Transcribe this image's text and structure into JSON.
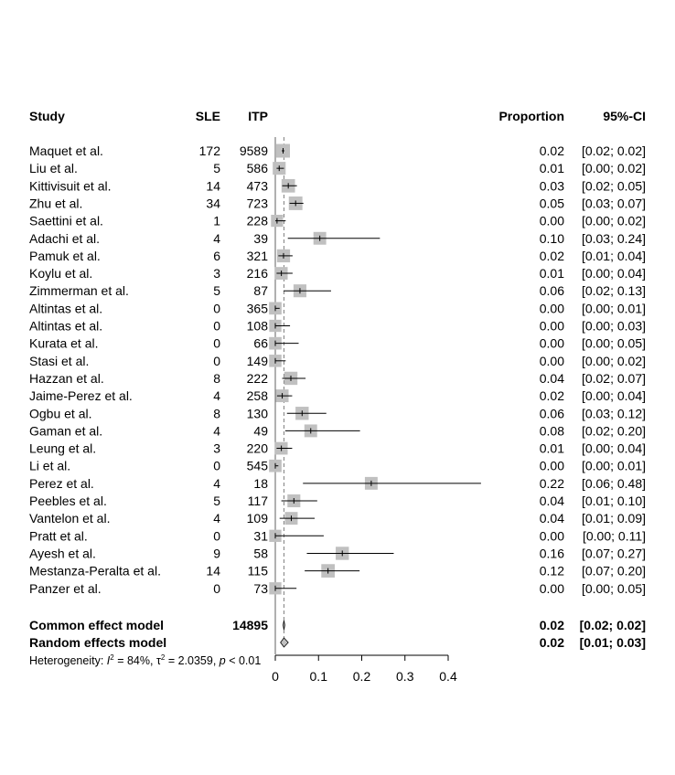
{
  "chart_data": {
    "type": "forest",
    "headers": {
      "study": "Study",
      "sle": "SLE",
      "itp": "ITP",
      "proportion": "Proportion",
      "ci": "95%-CI"
    },
    "studies": [
      {
        "name": "Maquet et al.",
        "sle": "172",
        "itp": "9589",
        "est": 0.018,
        "lo": 0.015,
        "hi": 0.021,
        "prop_text": "0.02",
        "ci_text": "[0.02; 0.02]",
        "weight": 1.0
      },
      {
        "name": "Liu et al.",
        "sle": "5",
        "itp": "586",
        "est": 0.009,
        "lo": 0.003,
        "hi": 0.02,
        "prop_text": "0.01",
        "ci_text": "[0.00; 0.02]",
        "weight": 0.85
      },
      {
        "name": "Kittivisuit et al.",
        "sle": "14",
        "itp": "473",
        "est": 0.03,
        "lo": 0.016,
        "hi": 0.05,
        "prop_text": "0.03",
        "ci_text": "[0.02; 0.05]",
        "weight": 0.95
      },
      {
        "name": "Zhu et al.",
        "sle": "34",
        "itp": "723",
        "est": 0.047,
        "lo": 0.033,
        "hi": 0.065,
        "prop_text": "0.05",
        "ci_text": "[0.03; 0.07]",
        "weight": 0.98
      },
      {
        "name": "Saettini et al.",
        "sle": "1",
        "itp": "228",
        "est": 0.004,
        "lo": 0.0,
        "hi": 0.024,
        "prop_text": "0.00",
        "ci_text": "[0.00; 0.02]",
        "weight": 0.7
      },
      {
        "name": "Adachi et al.",
        "sle": "4",
        "itp": "39",
        "est": 0.103,
        "lo": 0.029,
        "hi": 0.242,
        "prop_text": "0.10",
        "ci_text": "[0.03; 0.24]",
        "weight": 0.82
      },
      {
        "name": "Pamuk et al.",
        "sle": "6",
        "itp": "321",
        "est": 0.019,
        "lo": 0.007,
        "hi": 0.04,
        "prop_text": "0.02",
        "ci_text": "[0.01; 0.04]",
        "weight": 0.88
      },
      {
        "name": "Koylu et al.",
        "sle": "3",
        "itp": "216",
        "est": 0.014,
        "lo": 0.003,
        "hi": 0.04,
        "prop_text": "0.01",
        "ci_text": "[0.00; 0.04]",
        "weight": 0.8
      },
      {
        "name": "Zimmerman et al.",
        "sle": "5",
        "itp": "87",
        "est": 0.057,
        "lo": 0.019,
        "hi": 0.129,
        "prop_text": "0.06",
        "ci_text": "[0.02; 0.13]",
        "weight": 0.85
      },
      {
        "name": "Altintas et al.",
        "sle": "0",
        "itp": "365",
        "est": 0.0,
        "lo": 0.0,
        "hi": 0.01,
        "prop_text": "0.00",
        "ci_text": "[0.00; 0.01]",
        "weight": 0.78
      },
      {
        "name": "Altintas et al.",
        "sle": "0",
        "itp": "108",
        "est": 0.0,
        "lo": 0.0,
        "hi": 0.034,
        "prop_text": "0.00",
        "ci_text": "[0.00; 0.03]",
        "weight": 0.72
      },
      {
        "name": "Kurata et al.",
        "sle": "0",
        "itp": "66",
        "est": 0.0,
        "lo": 0.0,
        "hi": 0.054,
        "prop_text": "0.00",
        "ci_text": "[0.00; 0.05]",
        "weight": 0.78
      },
      {
        "name": "Stasi et al.",
        "sle": "0",
        "itp": "149",
        "est": 0.0,
        "lo": 0.0,
        "hi": 0.024,
        "prop_text": "0.00",
        "ci_text": "[0.00; 0.02]",
        "weight": 0.75
      },
      {
        "name": "Hazzan et al.",
        "sle": "8",
        "itp": "222",
        "est": 0.036,
        "lo": 0.016,
        "hi": 0.07,
        "prop_text": "0.04",
        "ci_text": "[0.02; 0.07]",
        "weight": 0.9
      },
      {
        "name": "Jaime-Perez et al.",
        "sle": "4",
        "itp": "258",
        "est": 0.016,
        "lo": 0.004,
        "hi": 0.039,
        "prop_text": "0.02",
        "ci_text": "[0.00; 0.04]",
        "weight": 0.82
      },
      {
        "name": "Ogbu et al.",
        "sle": "8",
        "itp": "130",
        "est": 0.062,
        "lo": 0.027,
        "hi": 0.118,
        "prop_text": "0.06",
        "ci_text": "[0.03; 0.12]",
        "weight": 0.9
      },
      {
        "name": "Gaman et al.",
        "sle": "4",
        "itp": "49",
        "est": 0.082,
        "lo": 0.023,
        "hi": 0.196,
        "prop_text": "0.08",
        "ci_text": "[0.02; 0.20]",
        "weight": 0.82
      },
      {
        "name": "Leung et al.",
        "sle": "3",
        "itp": "220",
        "est": 0.014,
        "lo": 0.003,
        "hi": 0.039,
        "prop_text": "0.01",
        "ci_text": "[0.00; 0.04]",
        "weight": 0.8
      },
      {
        "name": "Li et al.",
        "sle": "0",
        "itp": "545",
        "est": 0.0,
        "lo": 0.0,
        "hi": 0.007,
        "prop_text": "0.00",
        "ci_text": "[0.00; 0.01]",
        "weight": 0.78
      },
      {
        "name": "Perez et al.",
        "sle": "4",
        "itp": "18",
        "est": 0.222,
        "lo": 0.064,
        "hi": 0.476,
        "prop_text": "0.22",
        "ci_text": "[0.06; 0.48]",
        "weight": 0.82
      },
      {
        "name": "Peebles et al.",
        "sle": "5",
        "itp": "117",
        "est": 0.043,
        "lo": 0.014,
        "hi": 0.097,
        "prop_text": "0.04",
        "ci_text": "[0.01; 0.10]",
        "weight": 0.85
      },
      {
        "name": "Vantelon et al.",
        "sle": "4",
        "itp": "109",
        "est": 0.037,
        "lo": 0.01,
        "hi": 0.091,
        "prop_text": "0.04",
        "ci_text": "[0.01; 0.09]",
        "weight": 0.82
      },
      {
        "name": "Pratt et al.",
        "sle": "0",
        "itp": "31",
        "est": 0.0,
        "lo": 0.0,
        "hi": 0.112,
        "prop_text": "0.00",
        "ci_text": "[0.00; 0.11]",
        "weight": 0.72
      },
      {
        "name": "Ayesh et al.",
        "sle": "9",
        "itp": "58",
        "est": 0.155,
        "lo": 0.073,
        "hi": 0.274,
        "prop_text": "0.16",
        "ci_text": "[0.07; 0.27]",
        "weight": 0.9
      },
      {
        "name": "Mestanza-Peralta et al.",
        "sle": "14",
        "itp": "115",
        "est": 0.122,
        "lo": 0.068,
        "hi": 0.195,
        "prop_text": "0.12",
        "ci_text": "[0.07; 0.20]",
        "weight": 0.95
      },
      {
        "name": "Panzer et al.",
        "sle": "0",
        "itp": "73",
        "est": 0.0,
        "lo": 0.0,
        "hi": 0.049,
        "prop_text": "0.00",
        "ci_text": "[0.00; 0.05]",
        "weight": 0.72
      }
    ],
    "common": {
      "label": "Common effect model",
      "itp_total": "14895",
      "est": 0.02,
      "lo": 0.018,
      "hi": 0.022,
      "prop_text": "0.02",
      "ci_text": "[0.02; 0.02]"
    },
    "random": {
      "label": "Random effects model",
      "est": 0.02,
      "lo": 0.012,
      "hi": 0.03,
      "prop_text": "0.02",
      "ci_text": "[0.01; 0.03]"
    },
    "heterogeneity": {
      "prefix": "Heterogeneity: ",
      "i2_symbol": "I",
      "i2_value": " = 84%, ",
      "tau_symbol": "τ",
      "tau_value": " = 2.0359, ",
      "p_symbol": "p",
      "p_value": " < 0.01"
    },
    "axis": {
      "min": 0,
      "max": 0.4,
      "ticks": [
        0,
        0.1,
        0.2,
        0.3,
        0.4
      ],
      "tick_labels": [
        "0",
        "0.1",
        "0.2",
        "0.3",
        "0.4"
      ]
    },
    "colors": {
      "square": "#c0c0c0",
      "line": "#000000",
      "ref_line": "#808080"
    }
  }
}
